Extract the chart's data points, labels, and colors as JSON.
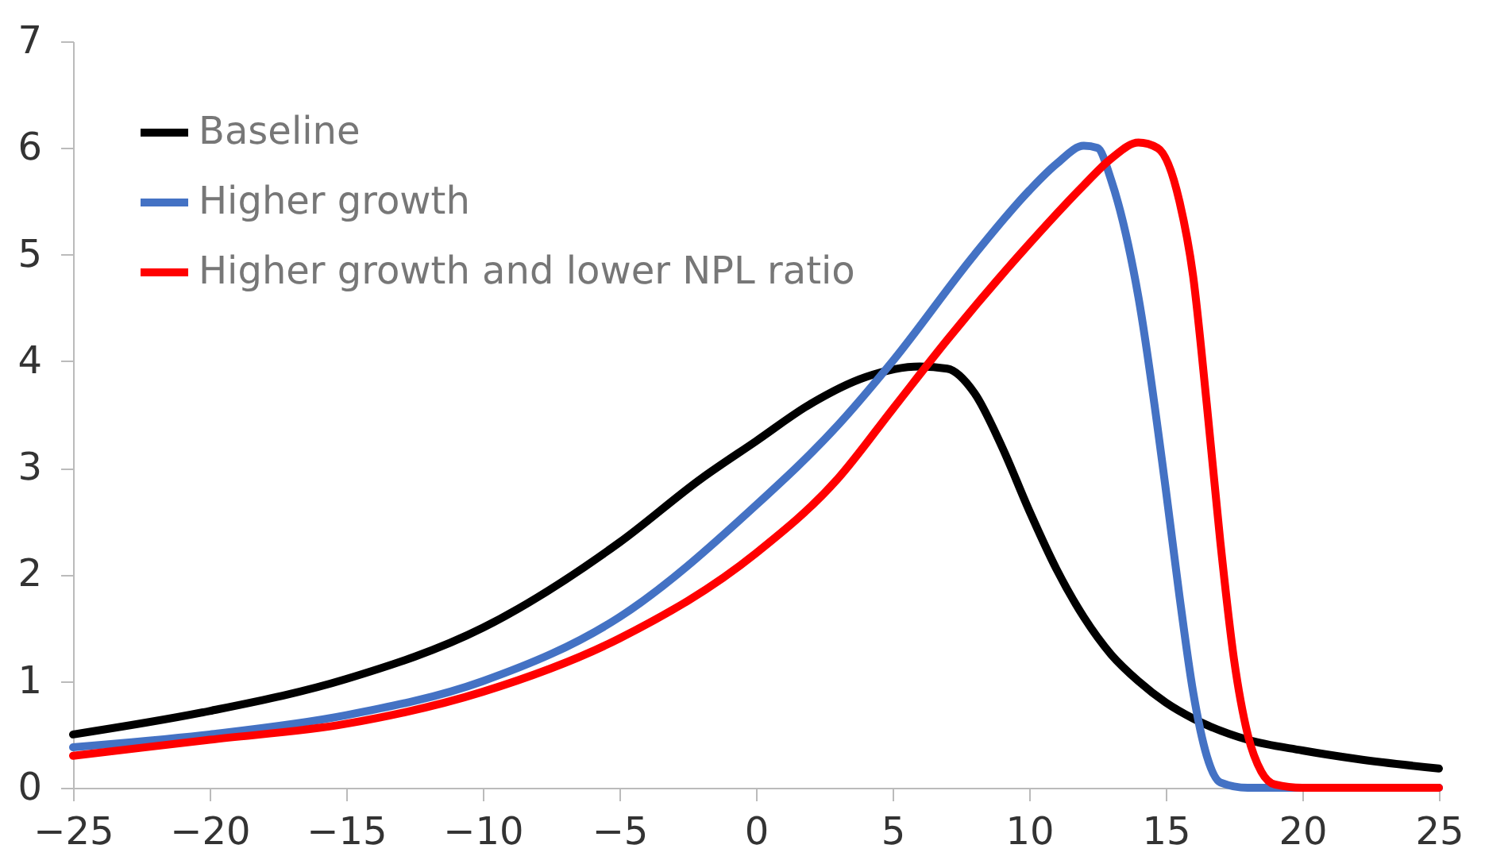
{
  "chart_data": {
    "type": "line",
    "xlim": [
      -25,
      25
    ],
    "xticks": [
      -25,
      -20,
      -15,
      -10,
      -5,
      0,
      5,
      10,
      15,
      20,
      25
    ],
    "ylim": [
      0,
      7
    ],
    "yticks": [
      0,
      1,
      2,
      3,
      4,
      5,
      6,
      7
    ],
    "grid": false,
    "legend": "top left",
    "line_style": "solid",
    "series": [
      {
        "name": "Baseline",
        "color": "#000000",
        "x": [
          -25,
          -20,
          -15,
          -10,
          -5,
          -2,
          0,
          2,
          4,
          6,
          7,
          8,
          9,
          10,
          11,
          12,
          13,
          14,
          15,
          16,
          18,
          20,
          22,
          25
        ],
        "values": [
          0.5,
          0.72,
          1.02,
          1.5,
          2.3,
          2.9,
          3.25,
          3.6,
          3.85,
          3.95,
          3.93,
          3.7,
          3.2,
          2.6,
          2.05,
          1.6,
          1.25,
          1.0,
          0.8,
          0.65,
          0.45,
          0.35,
          0.27,
          0.18
        ]
      },
      {
        "name": "Higher growth",
        "color": "#4472c4",
        "x": [
          -25,
          -20,
          -15,
          -10,
          -5,
          0,
          3,
          5,
          8,
          10,
          11,
          12,
          12.5,
          13,
          14,
          15,
          15.5,
          16,
          16.5,
          17,
          18,
          25
        ],
        "values": [
          0.38,
          0.5,
          0.68,
          1.0,
          1.6,
          2.65,
          3.4,
          4.0,
          5.0,
          5.6,
          5.85,
          6.02,
          6.0,
          5.7,
          4.6,
          2.8,
          1.8,
          0.9,
          0.3,
          0.05,
          0,
          0
        ]
      },
      {
        "name": "Higher growth and lower NPL ratio",
        "color": "#ff0000",
        "x": [
          -25,
          -20,
          -15,
          -10,
          -5,
          0,
          3,
          5,
          7,
          10,
          12,
          13,
          14,
          14.7,
          15.5,
          16,
          16.5,
          17,
          17.5,
          18,
          18.5,
          19,
          20,
          25
        ],
        "values": [
          0.3,
          0.45,
          0.6,
          0.9,
          1.4,
          2.2,
          2.9,
          3.55,
          4.2,
          5.1,
          5.65,
          5.9,
          6.05,
          6.0,
          5.5,
          4.8,
          3.6,
          2.3,
          1.2,
          0.5,
          0.15,
          0.03,
          0,
          0
        ]
      }
    ]
  }
}
